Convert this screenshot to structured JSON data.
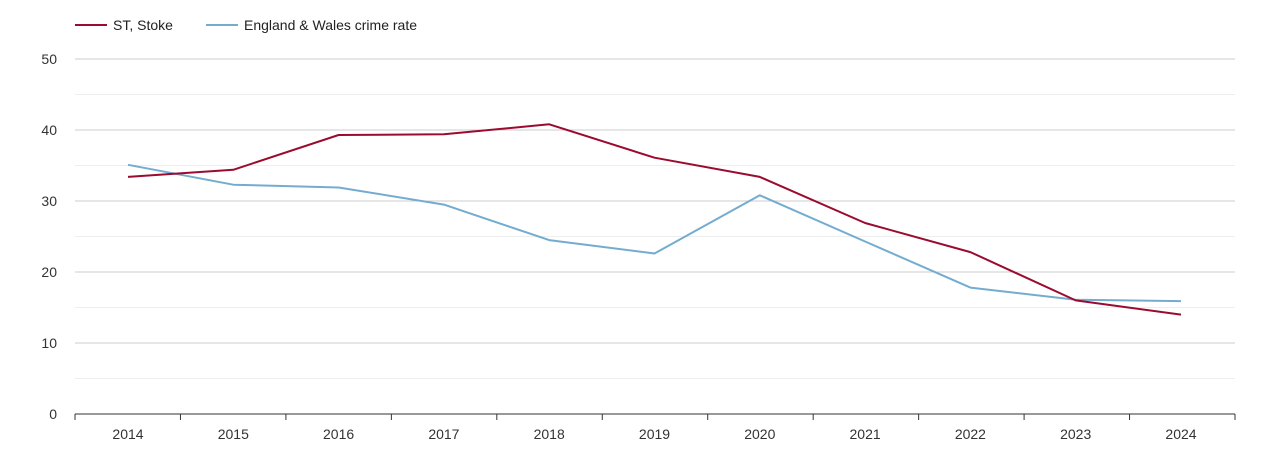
{
  "chart_data": {
    "type": "line",
    "title": "",
    "xlabel": "",
    "ylabel": "",
    "categories": [
      "2014",
      "2015",
      "2016",
      "2017",
      "2018",
      "2019",
      "2020",
      "2021",
      "2022",
      "2023",
      "2024"
    ],
    "ylim": [
      0,
      50
    ],
    "yticks": [
      0,
      10,
      20,
      30,
      40,
      50
    ],
    "grid": true,
    "legend_position": "top-left",
    "series": [
      {
        "name": "ST, Stoke",
        "color": "#9b0a2f",
        "values": [
          33.4,
          34.4,
          39.3,
          39.4,
          40.8,
          36.1,
          33.4,
          26.9,
          22.8,
          16.0,
          14.0
        ]
      },
      {
        "name": "England & Wales crime rate",
        "color": "#74acd0",
        "values": [
          35.1,
          32.3,
          31.9,
          29.5,
          24.5,
          22.6,
          30.8,
          24.3,
          17.8,
          16.1,
          15.9
        ]
      }
    ]
  }
}
